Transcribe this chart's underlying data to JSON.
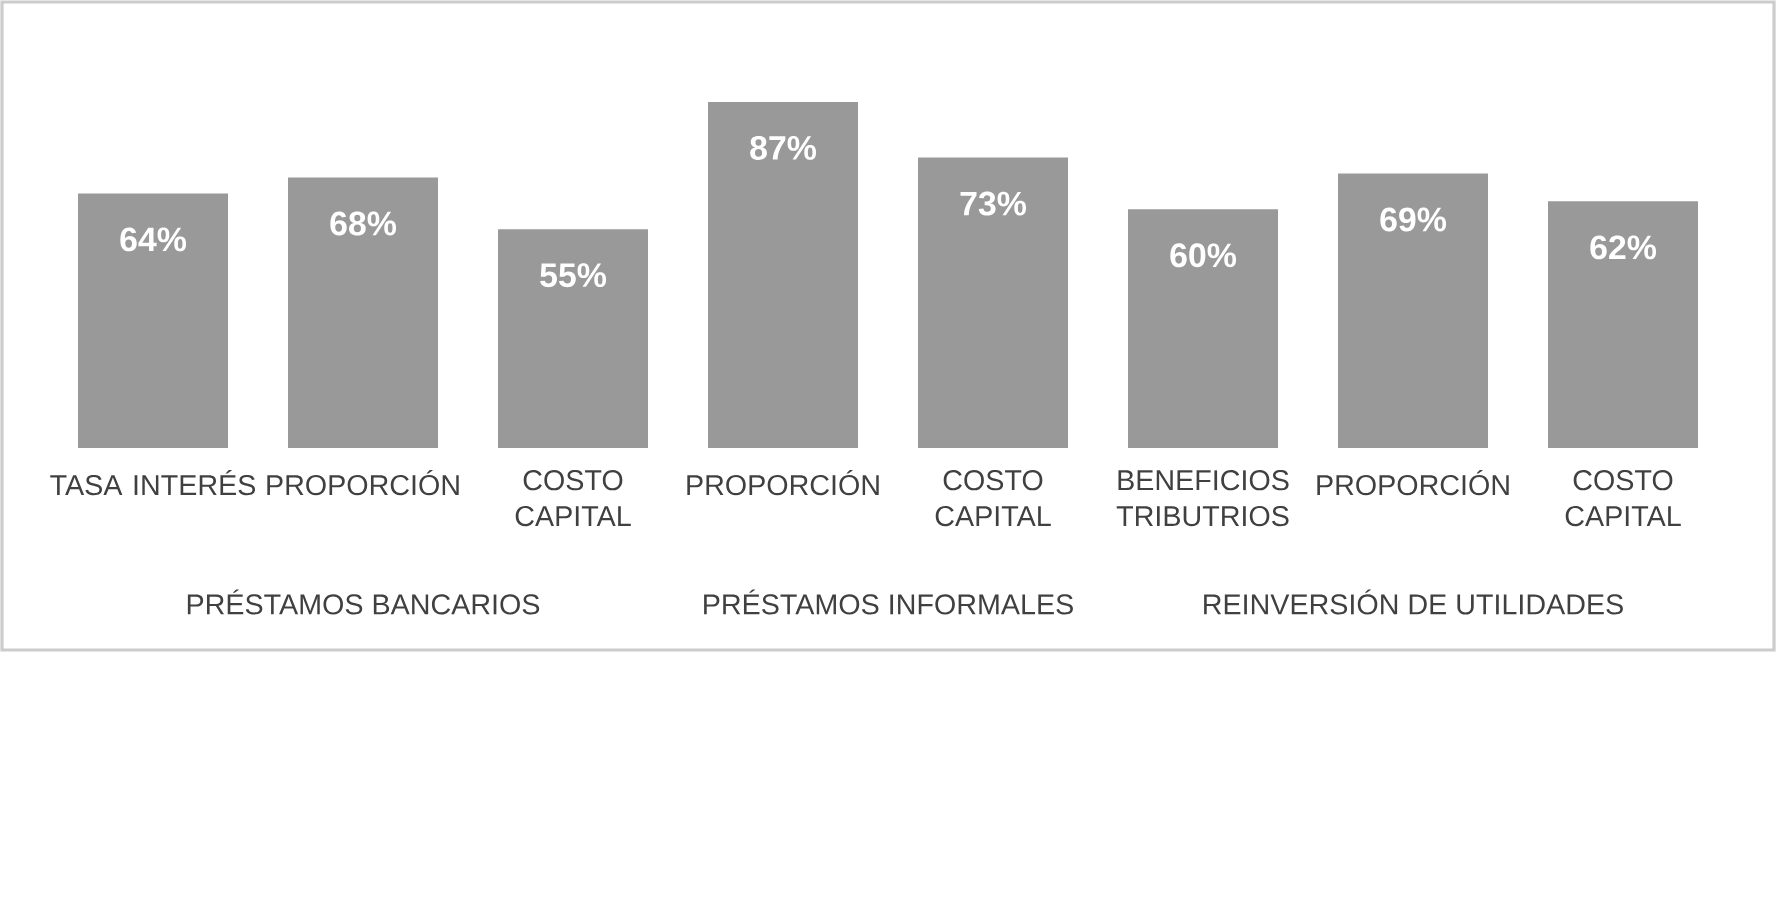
{
  "chart_data": {
    "type": "bar",
    "categories": [
      "TASA INTERÉS",
      "PROPORCIÓN",
      "COSTO CAPITAL",
      "PROPORCIÓN",
      "COSTO CAPITAL",
      "BENEFICIOS TRIBUTRIOS",
      "PROPORCIÓN",
      "COSTO CAPITAL"
    ],
    "values": [
      64,
      68,
      55,
      87,
      73,
      60,
      69,
      62
    ],
    "value_labels": [
      "64%",
      "68%",
      "55%",
      "87%",
      "73%",
      "60%",
      "69%",
      "62%"
    ],
    "color": "#999999",
    "annotations": [
      "PRÉSTAMOS BANCARIOS",
      "PRÉSTAMOS INFORMALES",
      "REINVERSIÓN DE UTILIDADES"
    ],
    "tick_labels": "x",
    "grid": false
  }
}
